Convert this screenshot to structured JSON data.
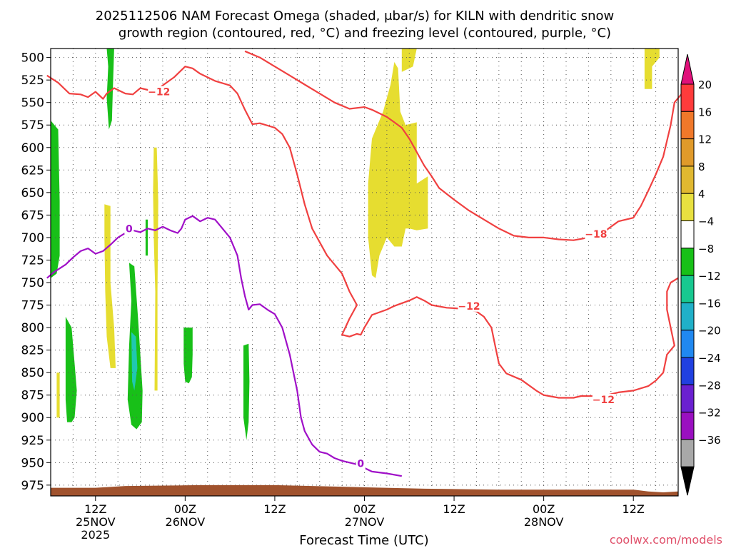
{
  "chart_data": {
    "type": "heatmap",
    "title_line1": "2025112506 NAM Forecast Omega (shaded, μbar/s) for KILN with dendritic snow",
    "title_line2": "growth region (contoured, red, °C) and freezing level (contoured, purple, °C)",
    "xlabel": "Forecast Time (UTC)",
    "watermark": "coolwx.com/models",
    "y_axis": {
      "scale": "pressure",
      "ylim": [
        987,
        490
      ],
      "ticks": [
        500,
        525,
        550,
        575,
        600,
        625,
        650,
        675,
        700,
        725,
        750,
        775,
        800,
        825,
        850,
        875,
        900,
        925,
        950,
        975
      ]
    },
    "x_axis": {
      "range_hours": [
        0,
        84
      ],
      "ticks": [
        {
          "hour": 6,
          "time": "12Z",
          "date": "25NOV",
          "year": "2025"
        },
        {
          "hour": 18,
          "time": "00Z",
          "date": "26NOV",
          "year": ""
        },
        {
          "hour": 30,
          "time": "12Z",
          "date": "",
          "year": ""
        },
        {
          "hour": 42,
          "time": "00Z",
          "date": "27NOV",
          "year": ""
        },
        {
          "hour": 54,
          "time": "12Z",
          "date": "",
          "year": ""
        },
        {
          "hour": 66,
          "time": "00Z",
          "date": "28NOV",
          "year": ""
        },
        {
          "hour": 78,
          "time": "12Z",
          "date": "",
          "year": ""
        }
      ]
    },
    "grid": true,
    "colorbar": {
      "labels": [
        "20",
        "16",
        "12",
        "8",
        "4",
        "−4",
        "−8",
        "−12",
        "−16",
        "−20",
        "−24",
        "−28",
        "−32",
        "−36"
      ],
      "colors": [
        "#ff3b3b",
        "#f0782a",
        "#e09a2a",
        "#e0b830",
        "#e8e040",
        "#ffffff",
        "#18c018",
        "#18c890",
        "#20b0c8",
        "#2088f0",
        "#2040e0",
        "#6a20d0",
        "#9a10c0",
        "#a8a8a8"
      ],
      "top_arrow": "#e0107a",
      "bottom_arrow": "#000000"
    },
    "contours": [
      {
        "kind": "dgz",
        "label": "−12",
        "color": "#f04040",
        "points": [
          [
            -0.5,
            520
          ],
          [
            1,
            528
          ],
          [
            2.5,
            540
          ],
          [
            4,
            541
          ],
          [
            5,
            544
          ],
          [
            6,
            538
          ],
          [
            7,
            546
          ],
          [
            7.5,
            540
          ],
          [
            8.5,
            534
          ],
          [
            10,
            540
          ],
          [
            11,
            541
          ],
          [
            12,
            534
          ],
          [
            13,
            536
          ],
          [
            14,
            537
          ],
          [
            15.5,
            528
          ],
          [
            16.5,
            522
          ],
          [
            18,
            510
          ],
          [
            19,
            512
          ],
          [
            20,
            518
          ],
          [
            22,
            526
          ],
          [
            24,
            531
          ],
          [
            25,
            540
          ],
          [
            26,
            558
          ],
          [
            27,
            574
          ],
          [
            28,
            573
          ],
          [
            30,
            578
          ],
          [
            31,
            585
          ],
          [
            32,
            600
          ],
          [
            33,
            630
          ],
          [
            34,
            663
          ],
          [
            35,
            690
          ],
          [
            36,
            705
          ],
          [
            37,
            720
          ],
          [
            39,
            740
          ],
          [
            40,
            760
          ],
          [
            41,
            775
          ],
          [
            40,
            790
          ],
          [
            39,
            808
          ],
          [
            40,
            810
          ],
          [
            41,
            807
          ],
          [
            41.5,
            808
          ],
          [
            42,
            800
          ],
          [
            43,
            786
          ],
          [
            45,
            780
          ],
          [
            46,
            776
          ],
          [
            48,
            770
          ],
          [
            49,
            766
          ],
          [
            50,
            770
          ],
          [
            51,
            775
          ],
          [
            53,
            778
          ],
          [
            55,
            779
          ],
          [
            57,
            782
          ],
          [
            58,
            788
          ],
          [
            59,
            800
          ],
          [
            59.5,
            820
          ],
          [
            60,
            840
          ],
          [
            61,
            851
          ],
          [
            63,
            858
          ],
          [
            65,
            870
          ],
          [
            66,
            875
          ],
          [
            68,
            878
          ],
          [
            70,
            878
          ],
          [
            71,
            876
          ],
          [
            72,
            876
          ],
          [
            74,
            876
          ],
          [
            76,
            872
          ],
          [
            78,
            870
          ],
          [
            80,
            865
          ],
          [
            81,
            859
          ],
          [
            82,
            850
          ],
          [
            82.5,
            830
          ],
          [
            83.5,
            820
          ],
          [
            83,
            800
          ],
          [
            82.5,
            780
          ],
          [
            82.5,
            760
          ],
          [
            83,
            750
          ],
          [
            84,
            745
          ]
        ]
      },
      {
        "kind": "dgz",
        "label": "−18",
        "color": "#f04040",
        "points": [
          [
            26,
            493
          ],
          [
            28,
            500
          ],
          [
            30,
            510
          ],
          [
            32,
            520
          ],
          [
            34,
            530
          ],
          [
            36,
            540
          ],
          [
            38,
            550
          ],
          [
            40,
            557
          ],
          [
            42,
            555
          ],
          [
            43,
            558
          ],
          [
            45,
            566
          ],
          [
            46,
            572
          ],
          [
            47,
            578
          ],
          [
            48,
            590
          ],
          [
            49,
            605
          ],
          [
            50,
            620
          ],
          [
            51,
            632
          ],
          [
            52,
            645
          ],
          [
            54,
            658
          ],
          [
            56,
            670
          ],
          [
            58,
            680
          ],
          [
            60,
            690
          ],
          [
            62,
            698
          ],
          [
            64,
            700
          ],
          [
            66,
            700
          ],
          [
            68,
            702
          ],
          [
            70,
            703
          ],
          [
            72,
            700
          ],
          [
            74,
            694
          ],
          [
            75,
            688
          ],
          [
            76,
            682
          ],
          [
            78,
            678
          ],
          [
            79,
            665
          ],
          [
            80,
            648
          ],
          [
            81,
            630
          ],
          [
            82,
            610
          ],
          [
            83,
            575
          ],
          [
            83.5,
            550
          ],
          [
            84.5,
            540
          ]
        ]
      },
      {
        "kind": "freezing",
        "label": "0",
        "color": "#a010c8",
        "points": [
          [
            -0.5,
            745
          ],
          [
            0.5,
            738
          ],
          [
            2,
            730
          ],
          [
            3,
            722
          ],
          [
            4,
            715
          ],
          [
            5,
            712
          ],
          [
            6,
            718
          ],
          [
            7,
            715
          ],
          [
            8,
            708
          ],
          [
            9,
            700
          ],
          [
            10,
            695
          ],
          [
            11,
            692
          ],
          [
            12,
            694
          ],
          [
            13,
            690
          ],
          [
            14,
            692
          ],
          [
            15,
            688
          ],
          [
            16,
            692
          ],
          [
            17,
            695
          ],
          [
            17.5,
            690
          ],
          [
            18,
            680
          ],
          [
            19,
            676
          ],
          [
            20,
            682
          ],
          [
            21,
            678
          ],
          [
            22,
            680
          ],
          [
            23,
            690
          ],
          [
            24,
            700
          ],
          [
            25,
            720
          ],
          [
            25.5,
            745
          ],
          [
            26,
            765
          ],
          [
            26.5,
            780
          ],
          [
            27,
            775
          ],
          [
            28,
            774
          ],
          [
            29,
            780
          ],
          [
            30,
            785
          ],
          [
            31,
            800
          ],
          [
            32,
            830
          ],
          [
            33,
            870
          ],
          [
            33.5,
            900
          ],
          [
            34,
            915
          ],
          [
            35,
            930
          ],
          [
            36,
            938
          ],
          [
            37,
            940
          ],
          [
            38,
            945
          ],
          [
            39,
            948
          ],
          [
            40,
            950
          ],
          [
            41,
            952
          ],
          [
            43,
            960
          ],
          [
            45,
            962
          ],
          [
            47,
            965
          ]
        ]
      }
    ],
    "contour_labels": [
      {
        "text": "−12",
        "hour": 14.5,
        "p": 538,
        "color": "#f04040"
      },
      {
        "text": "−12",
        "hour": 56,
        "p": 776,
        "color": "#f04040"
      },
      {
        "text": "−12",
        "hour": 74,
        "p": 880,
        "color": "#f04040"
      },
      {
        "text": "−18",
        "hour": 73,
        "p": 696,
        "color": "#f04040"
      },
      {
        "text": "0",
        "hour": 10.5,
        "p": 690,
        "color": "#a010c8"
      },
      {
        "text": "0",
        "hour": 41.5,
        "p": 951,
        "color": "#a010c8"
      }
    ]
  }
}
